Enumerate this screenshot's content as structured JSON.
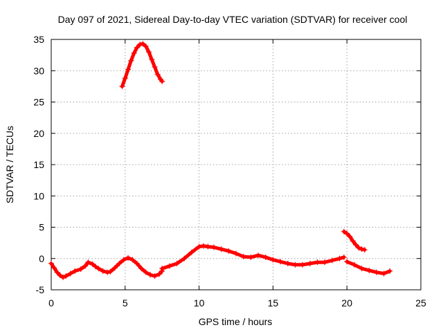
{
  "chart_data": {
    "type": "scatter",
    "title": "Day 097 of 2021, Sidereal Day-to-day VTEC variation (SDTVAR) for receiver cool",
    "xlabel": "GPS time / hours",
    "ylabel": "SDTVAR / TECUs",
    "xlim": [
      0,
      25
    ],
    "ylim": [
      -5,
      35
    ],
    "x_ticks": [
      "0",
      "5",
      "10",
      "15",
      "20",
      "25"
    ],
    "y_ticks": [
      "-5",
      "0",
      "5",
      "10",
      "15",
      "20",
      "25",
      "30",
      "35"
    ],
    "grid": true,
    "legend": "none",
    "color": "#ff0000",
    "marker": "plus",
    "series": [
      {
        "name": "segment-1",
        "x": [
          0.0,
          0.2,
          0.4,
          0.6,
          0.8,
          1.0,
          1.3,
          1.6,
          2.0,
          2.3,
          2.5,
          2.8,
          3.0,
          3.2,
          3.5,
          3.8,
          4.0,
          4.3,
          4.6,
          4.9,
          5.2,
          5.5,
          5.8,
          6.1,
          6.4,
          6.7,
          7.0,
          7.3,
          7.5
        ],
        "y": [
          -0.8,
          -1.5,
          -2.2,
          -2.7,
          -3.0,
          -2.8,
          -2.4,
          -2.0,
          -1.7,
          -1.2,
          -0.6,
          -0.9,
          -1.3,
          -1.6,
          -2.0,
          -2.2,
          -2.1,
          -1.5,
          -0.8,
          -0.2,
          0.1,
          -0.2,
          -0.8,
          -1.6,
          -2.2,
          -2.6,
          -2.8,
          -2.5,
          -2.0
        ]
      },
      {
        "name": "segment-2",
        "x": [
          4.8,
          5.0,
          5.2,
          5.4,
          5.6,
          5.8,
          6.0,
          6.2,
          6.4,
          6.6,
          6.8,
          7.0,
          7.2,
          7.4,
          7.5
        ],
        "y": [
          27.5,
          28.8,
          30.2,
          31.6,
          32.8,
          33.7,
          34.2,
          34.3,
          33.9,
          33.0,
          31.8,
          30.6,
          29.4,
          28.6,
          28.3
        ]
      },
      {
        "name": "segment-3",
        "x": [
          7.5,
          8.0,
          8.5,
          9.0,
          9.5,
          10.0,
          10.3,
          10.6,
          11.0,
          11.5,
          12.0,
          12.5,
          13.0,
          13.5,
          14.0,
          14.5,
          15.0,
          15.5,
          16.0,
          16.5,
          17.0,
          17.5,
          18.0,
          18.5,
          19.0,
          19.5,
          19.8
        ],
        "y": [
          -1.6,
          -1.2,
          -0.8,
          0.0,
          1.0,
          1.9,
          2.0,
          1.9,
          1.8,
          1.5,
          1.2,
          0.8,
          0.3,
          0.2,
          0.5,
          0.2,
          -0.2,
          -0.5,
          -0.8,
          -1.0,
          -1.0,
          -0.8,
          -0.6,
          -0.6,
          -0.3,
          0.0,
          0.2
        ]
      },
      {
        "name": "segment-4",
        "x": [
          19.8,
          20.0,
          20.2,
          20.4,
          20.6,
          20.8,
          21.0,
          21.2
        ],
        "y": [
          4.3,
          4.0,
          3.5,
          2.8,
          2.2,
          1.7,
          1.5,
          1.4
        ]
      },
      {
        "name": "segment-5",
        "x": [
          20.0,
          20.5,
          21.0,
          21.5,
          22.0,
          22.5,
          22.9
        ],
        "y": [
          -0.5,
          -1.0,
          -1.6,
          -1.9,
          -2.2,
          -2.4,
          -2.0
        ]
      }
    ]
  }
}
